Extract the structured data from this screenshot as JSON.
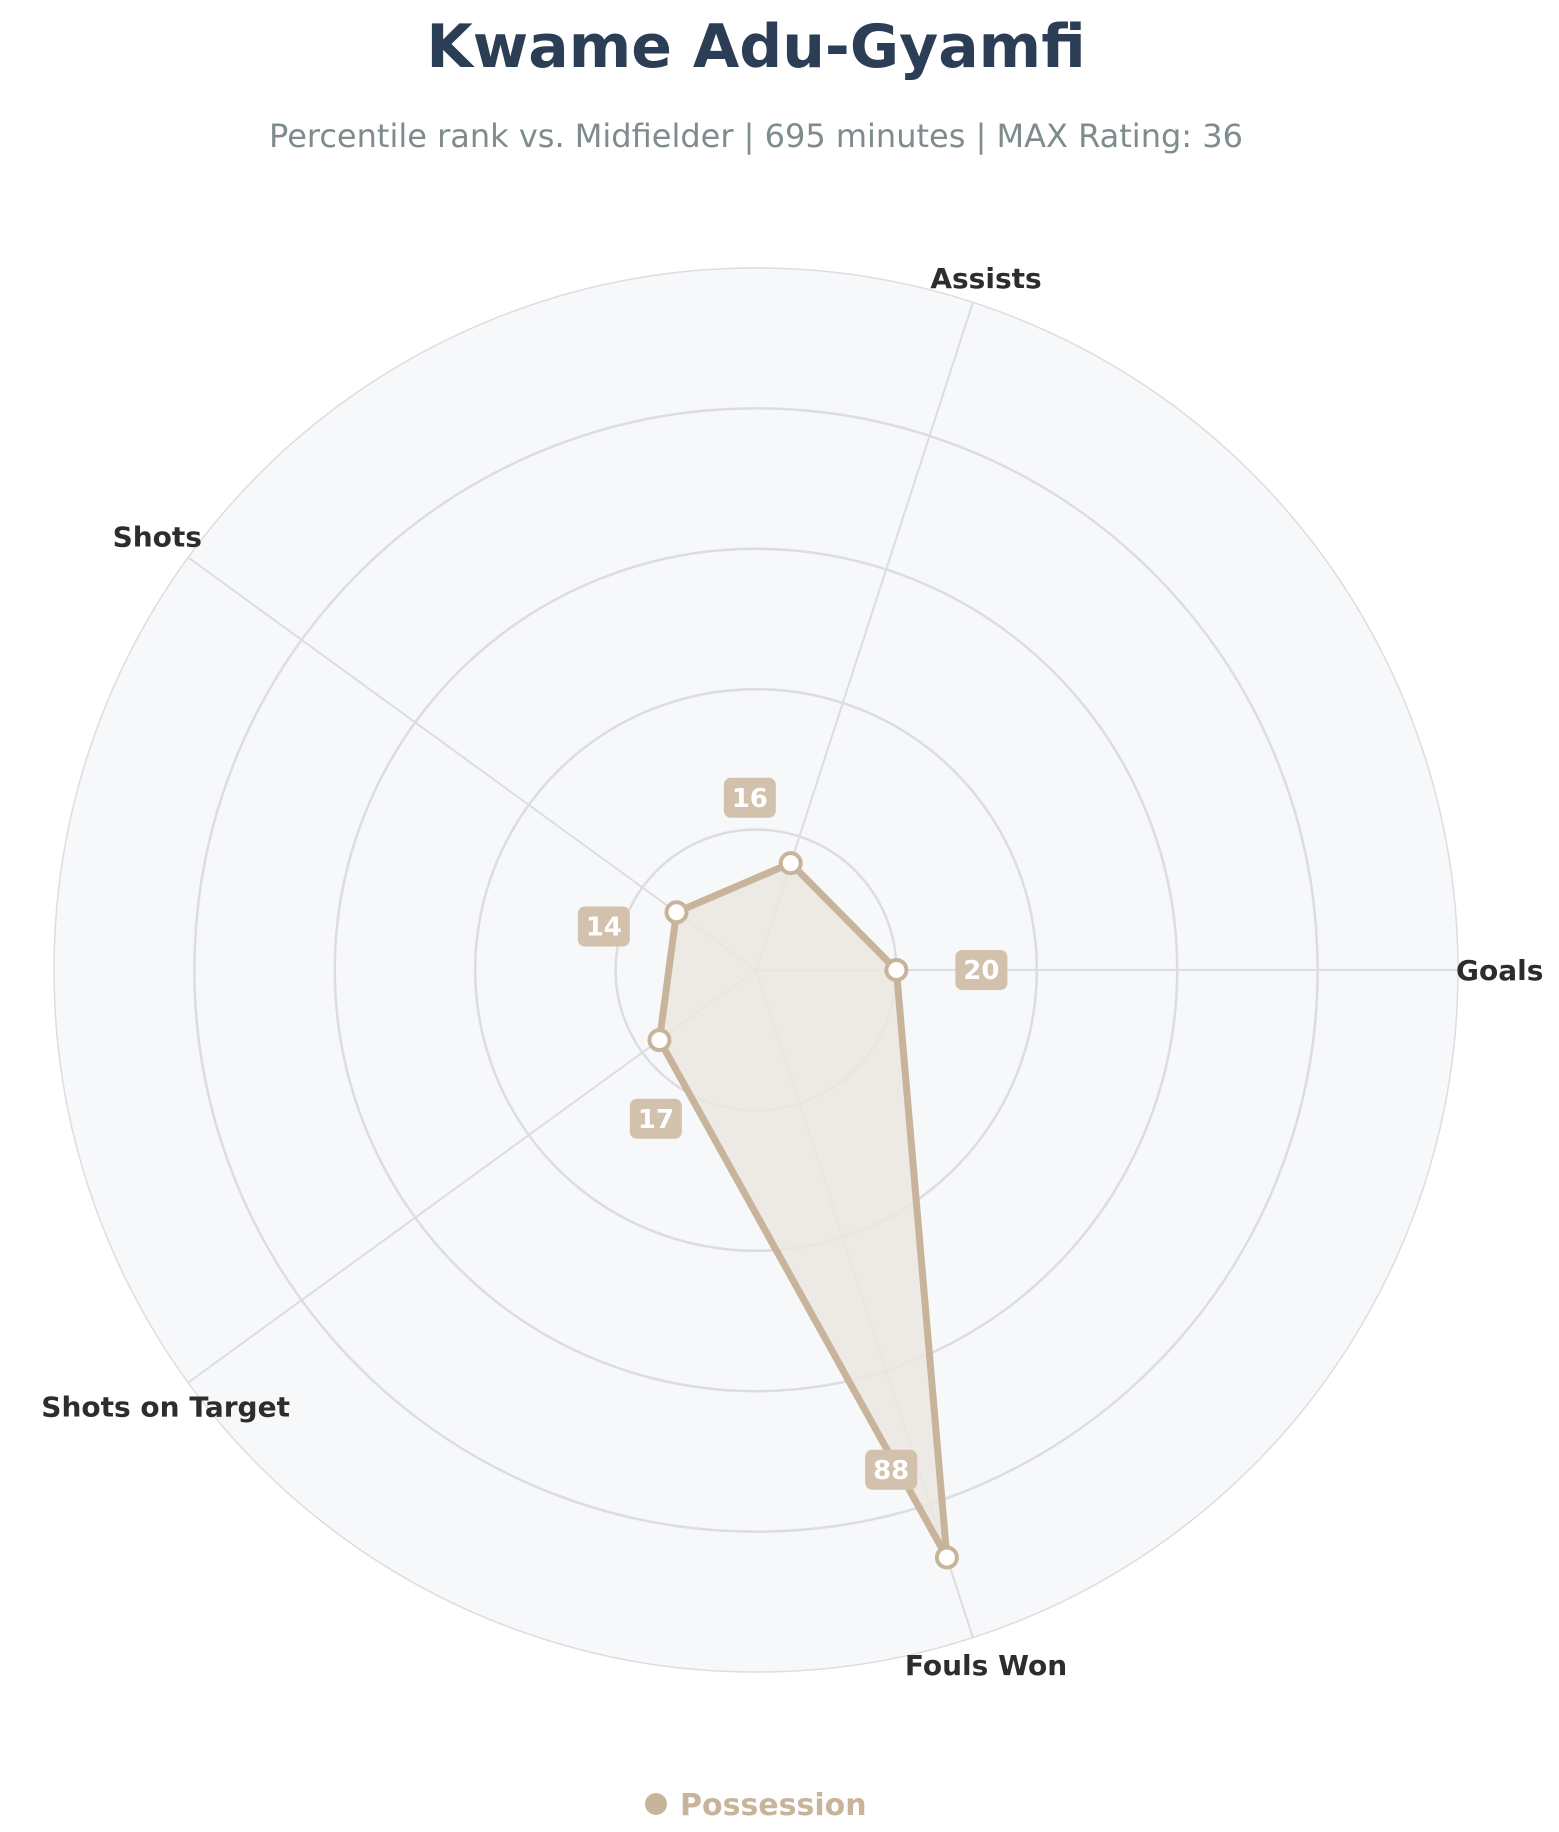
{
  "chart_data": {
    "type": "radar",
    "title": "Kwame Adu-Gyamfi",
    "subtitle": "Percentile rank vs. Midfielder | 695 minutes | MAX Rating: 36",
    "axes": [
      "Goals",
      "Assists",
      "Shots",
      "Shots on Target",
      "Fouls Won"
    ],
    "series": [
      {
        "name": "Possession",
        "values": [
          20,
          16,
          14,
          17,
          88
        ]
      }
    ],
    "rlim": [
      0,
      100
    ],
    "rgrid": [
      20,
      40,
      60,
      80,
      100
    ],
    "legend_position": "bottom-center",
    "grid": true,
    "colors": {
      "series": "#c8b49b",
      "fill": "#ebe6e0",
      "label_box": "#d2c1ad",
      "title": "#2c3e55",
      "subtitle": "#7f8c8d",
      "axis_label": "#2d2d2d",
      "background": "#f7f8fa",
      "grid": "#dcdde1"
    }
  }
}
